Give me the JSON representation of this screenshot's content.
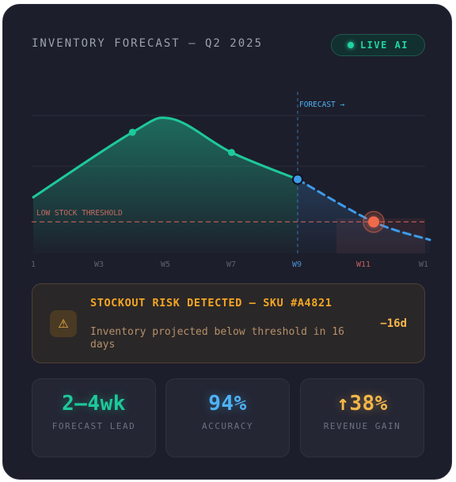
{
  "header": {
    "title": "INVENTORY FORECAST — Q2 2025",
    "badge_label": "LIVE AI"
  },
  "chart_data": {
    "type": "line",
    "x_ticks": [
      "1",
      "W3",
      "W5",
      "W7",
      "W9",
      "W11",
      "W1"
    ],
    "forecast_marker_label": "FORECAST →",
    "threshold_label": "LOW STOCK THRESHOLD",
    "series": [
      {
        "values": [
          [
            0,
            0.25
          ],
          [
            1.5,
            0.54
          ],
          [
            2.1,
            0.6
          ],
          [
            3,
            0.45
          ],
          [
            4,
            0.33
          ]
        ]
      },
      {
        "values": [
          [
            4,
            0.33
          ],
          [
            5.15,
            0.14
          ],
          [
            6,
            0.06
          ]
        ]
      }
    ],
    "threshold": 0.14,
    "grid": true,
    "colors": {
      "actual": "#1ec99a",
      "forecast": "#3d9be9",
      "threshold": "#d6615a",
      "risk_point": "#ef6a4a"
    }
  },
  "alert": {
    "icon": "warning-icon",
    "title": "STOCKOUT RISK DETECTED — SKU #A4821",
    "message": "Inventory projected below threshold in 16 days",
    "days": "−16d"
  },
  "stats": [
    {
      "value": "2–4wk",
      "label": "FORECAST LEAD",
      "color": "#1ec99a"
    },
    {
      "value": "94%",
      "label": "ACCURACY",
      "color": "#4db2f5"
    },
    {
      "value": "↑38%",
      "label": "REVENUE GAIN",
      "color": "#f5b74a"
    }
  ]
}
